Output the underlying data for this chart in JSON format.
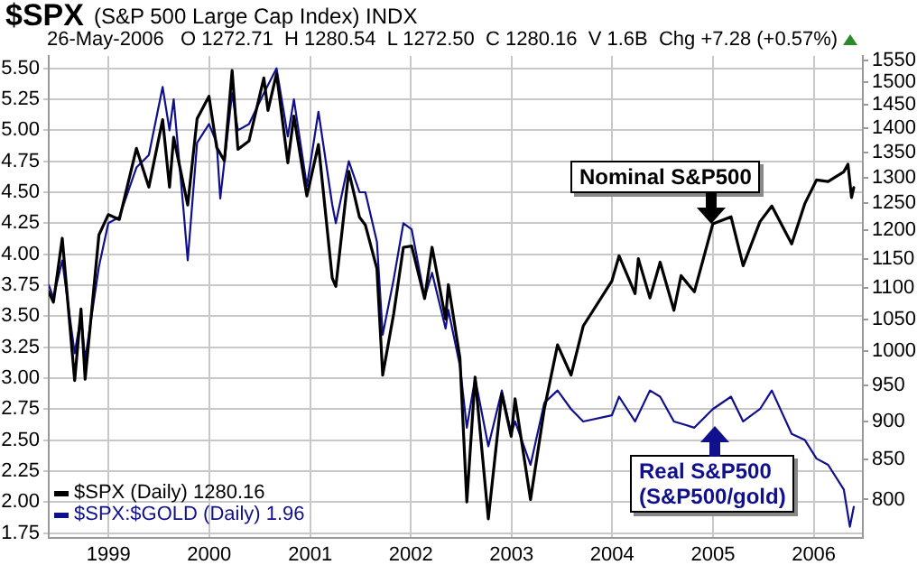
{
  "chart_data": {
    "type": "line",
    "title": "$SPX",
    "subtitle": "(S&P 500 Large Cap Index) INDX",
    "annotations": [
      "26-May-2006   O 1272.71  H 1280.54  L 1272.50  C 1280.16  V 1.6B  Chg +7.28 (+0.57%)",
      "Nominal S&P500",
      "Real S&P500\n(S&P500/gold)"
    ],
    "xlim": [
      "1998-05-29",
      "2006-06-28"
    ],
    "xticks": [
      "1999",
      "2000",
      "2001",
      "2002",
      "2003",
      "2004",
      "2005",
      "2006"
    ],
    "ylim": [
      1.71,
      5.6
    ],
    "yticks": [
      1.75,
      {
        "value": 2,
        "label": "2.00"
      },
      2.25,
      {
        "value": 2.5,
        "label": "2.50"
      },
      2.75,
      {
        "value": 3,
        "label": "3.00"
      },
      3.25,
      {
        "value": 3.5,
        "label": "3.50"
      },
      3.75,
      {
        "value": 4,
        "label": "4.00"
      },
      4.25,
      {
        "value": 4.5,
        "label": "4.50"
      },
      4.75,
      {
        "value": 5,
        "label": "5.00"
      },
      5.25,
      {
        "value": 5.5,
        "label": "5.50"
      }
    ],
    "y2lim": [
      755,
      1561
    ],
    "y2ticks": [
      800,
      850,
      900,
      950,
      1000,
      1050,
      1100,
      1150,
      1200,
      1250,
      1300,
      1350,
      1400,
      1450,
      1500,
      1550
    ],
    "log": "y2",
    "grid": true,
    "legend": "bottom left",
    "marker": "none",
    "line_style": "solid",
    "series": [
      {
        "name": "$SPX (Daily) 1280.16",
        "color": "#000000",
        "axis": "y2",
        "x": [
          "1998-05-29",
          "1998-06-15",
          "1998-07-17",
          "1998-08-31",
          "1998-09-23",
          "1998-10-08",
          "1998-11-27",
          "1998-12-31",
          "1999-02-09",
          "1999-04-12",
          "1999-05-27",
          "1999-07-16",
          "1999-08-10",
          "1999-08-25",
          "1999-10-15",
          "1999-11-18",
          "1999-12-31",
          "2000-01-28",
          "2000-02-25",
          "2000-03-24",
          "2000-04-14",
          "2000-05-24",
          "2000-07-17",
          "2000-08-01",
          "2000-09-01",
          "2000-10-12",
          "2000-11-03",
          "2000-12-20",
          "2001-01-31",
          "2001-03-22",
          "2001-04-04",
          "2001-05-21",
          "2001-06-29",
          "2001-07-20",
          "2001-08-31",
          "2001-09-21",
          "2001-10-31",
          "2001-12-05",
          "2002-01-04",
          "2002-02-20",
          "2002-03-19",
          "2002-05-07",
          "2002-05-17",
          "2002-06-28",
          "2002-07-23",
          "2002-08-22",
          "2002-10-09",
          "2002-11-27",
          "2002-12-31",
          "2003-01-14",
          "2003-03-11",
          "2003-04-30",
          "2003-06-17",
          "2003-08-05",
          "2003-09-18",
          "2003-12-31",
          "2004-01-26",
          "2004-03-24",
          "2004-04-05",
          "2004-05-17",
          "2004-06-23",
          "2004-08-12",
          "2004-09-07",
          "2004-10-25",
          "2004-12-31",
          "2005-03-07",
          "2005-04-20",
          "2005-06-20",
          "2005-08-02",
          "2005-10-13",
          "2005-11-30",
          "2006-01-11",
          "2006-02-22",
          "2006-04-20",
          "2006-05-05",
          "2006-05-18",
          "2006-05-26"
        ],
        "values": [
          1094,
          1077,
          1186,
          957,
          1066,
          959,
          1192,
          1229,
          1220,
          1358,
          1281,
          1418,
          1281,
          1381,
          1247,
          1420,
          1469,
          1360,
          1333,
          1527,
          1356,
          1373,
          1510,
          1438,
          1520,
          1329,
          1426,
          1264,
          1366,
          1117,
          1103,
          1312,
          1224,
          1210,
          1133,
          965,
          1059,
          1170,
          1172,
          1083,
          1170,
          1050,
          1106,
          990,
          797,
          962,
          777,
          938,
          880,
          931,
          800,
          917,
          1010,
          965,
          1039,
          1112,
          1155,
          1091,
          1150,
          1084,
          1144,
          1064,
          1121,
          1094,
          1212,
          1225,
          1138,
          1216,
          1245,
          1176,
          1250,
          1295,
          1292,
          1311,
          1326,
          1261,
          1280
        ]
      },
      {
        "name": "$SPX:$GOLD (Daily) 1.96",
        "color": "#10108c",
        "axis": "y",
        "x": [
          "1998-05-29",
          "1998-06-15",
          "1998-07-17",
          "1998-08-31",
          "1998-09-23",
          "1998-10-08",
          "1998-11-27",
          "1998-12-31",
          "1999-02-09",
          "1999-04-12",
          "1999-05-27",
          "1999-07-16",
          "1999-08-10",
          "1999-08-25",
          "1999-09-30",
          "1999-10-15",
          "1999-11-18",
          "1999-12-31",
          "2000-01-28",
          "2000-02-10",
          "2000-03-24",
          "2000-04-14",
          "2000-05-24",
          "2000-07-17",
          "2000-09-01",
          "2000-10-12",
          "2000-11-03",
          "2000-12-20",
          "2001-01-31",
          "2001-03-22",
          "2001-04-04",
          "2001-05-21",
          "2001-06-29",
          "2001-07-20",
          "2001-08-31",
          "2001-09-21",
          "2001-10-31",
          "2001-12-05",
          "2002-01-04",
          "2002-02-20",
          "2002-03-19",
          "2002-05-07",
          "2002-05-17",
          "2002-06-28",
          "2002-07-23",
          "2002-08-22",
          "2002-10-09",
          "2002-11-27",
          "2002-12-31",
          "2003-01-14",
          "2003-03-11",
          "2003-04-30",
          "2003-06-17",
          "2003-08-05",
          "2003-09-18",
          "2003-12-31",
          "2004-01-26",
          "2004-03-24",
          "2004-05-17",
          "2004-06-23",
          "2004-08-12",
          "2004-10-25",
          "2004-12-31",
          "2005-03-07",
          "2005-04-20",
          "2005-06-20",
          "2005-08-02",
          "2005-10-13",
          "2005-11-30",
          "2006-01-11",
          "2006-02-22",
          "2006-04-20",
          "2006-05-12",
          "2006-05-26"
        ],
        "values": [
          3.75,
          3.65,
          3.95,
          3.2,
          3.5,
          3.15,
          3.9,
          4.25,
          4.3,
          4.7,
          4.8,
          5.35,
          5.0,
          5.25,
          4.35,
          3.95,
          4.9,
          5.05,
          4.9,
          4.45,
          5.3,
          5.0,
          5.05,
          5.3,
          5.5,
          4.95,
          5.25,
          4.55,
          5.15,
          4.4,
          4.25,
          4.75,
          4.5,
          4.5,
          4.1,
          3.35,
          3.8,
          4.25,
          4.2,
          3.65,
          3.85,
          3.4,
          3.55,
          3.1,
          2.6,
          3.0,
          2.45,
          2.9,
          2.55,
          2.65,
          2.3,
          2.8,
          2.9,
          2.75,
          2.65,
          2.7,
          2.85,
          2.65,
          2.9,
          2.85,
          2.65,
          2.6,
          2.75,
          2.85,
          2.65,
          2.75,
          2.9,
          2.55,
          2.5,
          2.35,
          2.3,
          2.1,
          1.8,
          1.96
        ]
      }
    ]
  }
}
